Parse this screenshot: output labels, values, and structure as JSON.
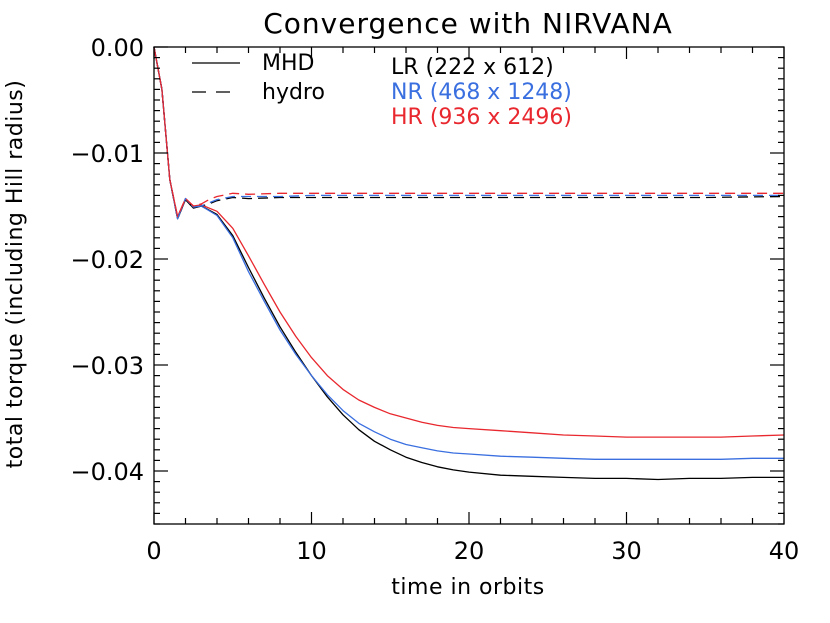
{
  "chart_data": {
    "type": "line",
    "title": "Convergence with NIRVANA",
    "xlabel": "time in orbits",
    "ylabel": "total torque (including Hill radius)",
    "xlim": [
      0,
      40
    ],
    "ylim": [
      -0.045,
      0.0
    ],
    "x_ticks": [
      0,
      10,
      20,
      30,
      40
    ],
    "x_tick_labels": [
      "0",
      "10",
      "20",
      "30",
      "40"
    ],
    "y_ticks": [
      0.0,
      -0.01,
      -0.02,
      -0.03,
      -0.04
    ],
    "y_tick_labels": [
      "0.00",
      "−0.01",
      "−0.02",
      "−0.03",
      "−0.04"
    ],
    "grid": false,
    "legend_style": [
      {
        "label": "MHD",
        "dash": "solid"
      },
      {
        "label": "hydro",
        "dash": "dashed"
      }
    ],
    "legend_resolution": [
      {
        "label": "LR (222 x 612)",
        "color": "#000000"
      },
      {
        "label": "NR (468 x 1248)",
        "color": "#3a6fe0"
      },
      {
        "label": "HR (936 x 2496)",
        "color": "#e8282e"
      }
    ],
    "series": [
      {
        "resolution": "LR",
        "model": "MHD",
        "color": "#000000",
        "dash": "solid",
        "x": [
          0,
          0.5,
          1,
          1.5,
          2,
          2.5,
          3,
          4,
          5,
          6,
          7,
          8,
          9,
          10,
          11,
          12,
          13,
          14,
          15,
          16,
          17,
          18,
          19,
          20,
          22,
          24,
          26,
          28,
          30,
          32,
          34,
          36,
          38,
          40
        ],
        "y": [
          0.0,
          -0.004,
          -0.0125,
          -0.0162,
          -0.0144,
          -0.0152,
          -0.015,
          -0.0158,
          -0.0178,
          -0.0208,
          -0.0237,
          -0.0264,
          -0.0288,
          -0.031,
          -0.033,
          -0.0347,
          -0.0361,
          -0.0372,
          -0.038,
          -0.0387,
          -0.0392,
          -0.0396,
          -0.0399,
          -0.0401,
          -0.0404,
          -0.0405,
          -0.0406,
          -0.0407,
          -0.0407,
          -0.0408,
          -0.0407,
          -0.0407,
          -0.0406,
          -0.0406
        ]
      },
      {
        "resolution": "NR",
        "model": "MHD",
        "color": "#3a6fe0",
        "dash": "solid",
        "x": [
          0,
          0.5,
          1,
          1.5,
          2,
          2.5,
          3,
          4,
          5,
          6,
          7,
          8,
          9,
          10,
          11,
          12,
          13,
          14,
          15,
          16,
          17,
          18,
          19,
          20,
          22,
          24,
          26,
          28,
          30,
          32,
          34,
          36,
          38,
          40
        ],
        "y": [
          0.0,
          -0.004,
          -0.0125,
          -0.0162,
          -0.0143,
          -0.0151,
          -0.015,
          -0.0159,
          -0.018,
          -0.0212,
          -0.024,
          -0.0267,
          -0.029,
          -0.031,
          -0.0328,
          -0.0343,
          -0.0355,
          -0.0363,
          -0.037,
          -0.0375,
          -0.0378,
          -0.0381,
          -0.0383,
          -0.0384,
          -0.0386,
          -0.0387,
          -0.0388,
          -0.0389,
          -0.0389,
          -0.0389,
          -0.0389,
          -0.0389,
          -0.0388,
          -0.0388
        ]
      },
      {
        "resolution": "HR",
        "model": "MHD",
        "color": "#e8282e",
        "dash": "solid",
        "x": [
          0,
          0.5,
          1,
          1.5,
          2,
          2.5,
          3,
          4,
          5,
          6,
          7,
          8,
          9,
          10,
          11,
          12,
          13,
          14,
          15,
          16,
          17,
          18,
          19,
          20,
          22,
          24,
          26,
          28,
          30,
          32,
          34,
          36,
          38,
          40
        ],
        "y": [
          0.0,
          -0.004,
          -0.0125,
          -0.016,
          -0.0143,
          -0.015,
          -0.0149,
          -0.0155,
          -0.0171,
          -0.0197,
          -0.0224,
          -0.025,
          -0.0273,
          -0.0293,
          -0.031,
          -0.0323,
          -0.0333,
          -0.034,
          -0.0346,
          -0.035,
          -0.0354,
          -0.0357,
          -0.0359,
          -0.036,
          -0.0362,
          -0.0364,
          -0.0366,
          -0.0367,
          -0.0368,
          -0.0368,
          -0.0368,
          -0.0368,
          -0.0367,
          -0.0366
        ]
      },
      {
        "resolution": "LR",
        "model": "hydro",
        "color": "#000000",
        "dash": "dashed",
        "x": [
          0,
          0.5,
          1,
          1.5,
          2,
          2.5,
          3,
          3.5,
          4,
          5,
          6,
          8,
          10,
          15,
          20,
          25,
          30,
          35,
          40
        ],
        "y": [
          0.0,
          -0.004,
          -0.0125,
          -0.0162,
          -0.0144,
          -0.0152,
          -0.015,
          -0.0148,
          -0.0145,
          -0.0142,
          -0.0143,
          -0.0142,
          -0.0142,
          -0.0142,
          -0.0142,
          -0.0142,
          -0.0142,
          -0.0142,
          -0.0141
        ]
      },
      {
        "resolution": "NR",
        "model": "hydro",
        "color": "#3a6fe0",
        "dash": "dashed",
        "x": [
          0,
          0.5,
          1,
          1.5,
          2,
          2.5,
          3,
          3.5,
          4,
          5,
          6,
          8,
          10,
          15,
          20,
          25,
          30,
          35,
          40
        ],
        "y": [
          0.0,
          -0.004,
          -0.0125,
          -0.0162,
          -0.0143,
          -0.0151,
          -0.015,
          -0.0147,
          -0.0144,
          -0.0141,
          -0.0141,
          -0.0141,
          -0.014,
          -0.014,
          -0.014,
          -0.014,
          -0.014,
          -0.014,
          -0.014
        ]
      },
      {
        "resolution": "HR",
        "model": "hydro",
        "color": "#e8282e",
        "dash": "dashed",
        "x": [
          0,
          0.5,
          1,
          1.5,
          2,
          2.5,
          3,
          3.5,
          4,
          5,
          6,
          8,
          10,
          15,
          20,
          25,
          30,
          35,
          40
        ],
        "y": [
          0.0,
          -0.004,
          -0.0125,
          -0.016,
          -0.0143,
          -0.015,
          -0.0148,
          -0.0144,
          -0.0141,
          -0.0138,
          -0.0139,
          -0.0138,
          -0.0138,
          -0.0138,
          -0.0138,
          -0.0138,
          -0.0138,
          -0.0138,
          -0.0138
        ]
      }
    ]
  }
}
